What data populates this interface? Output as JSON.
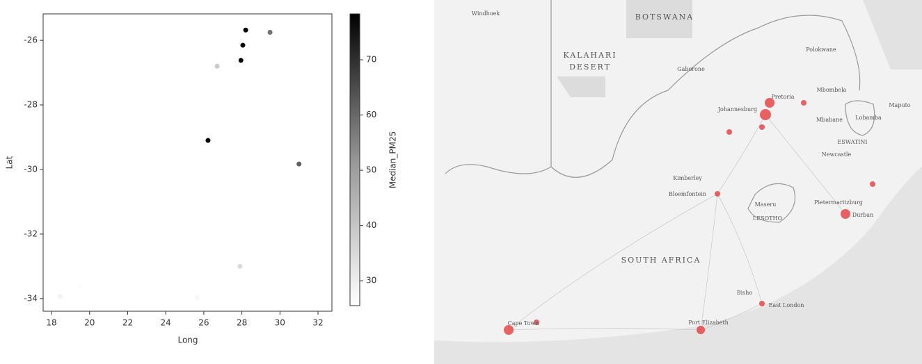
{
  "chart_data": {
    "type": "scatter",
    "x_label": "Long",
    "y_label": "Lat",
    "colorbar_label": "Median_PM25",
    "x": [
      28.2,
      28.05,
      27.95,
      29.48,
      26.7,
      26.22,
      31.0,
      27.9,
      18.44,
      19.5,
      25.64
    ],
    "y": [
      -25.68,
      -26.15,
      -26.62,
      -25.75,
      -26.8,
      -29.1,
      -29.83,
      -33.0,
      -33.93,
      -33.63,
      -33.97
    ],
    "color_values": [
      77,
      77,
      77,
      55,
      36,
      77,
      58,
      33,
      28,
      26,
      27
    ],
    "colormap": "Greys",
    "xlim": [
      17.56,
      32.73
    ],
    "ylim": [
      -34.39,
      -25.18
    ],
    "xticks": [
      18,
      20,
      22,
      24,
      26,
      28,
      30,
      32
    ],
    "yticks": [
      -26,
      -28,
      -30,
      -32,
      -34
    ],
    "clim": [
      25.5,
      78.3
    ],
    "cticks": [
      30,
      40,
      50,
      60,
      70
    ]
  },
  "map": {
    "labels": [
      "Windhoek",
      "BOTSWANA",
      "KALAHARI",
      "DESERT",
      "Gaborone",
      "Polokwane",
      "Pretoria",
      "Johannesburg",
      "Mbombela",
      "Maputo",
      "Lobamba",
      "Mbabane",
      "ESWATINI",
      "Newcastle",
      "Kimberley",
      "Bloemfontein",
      "Maseru",
      "LESOTHO",
      "Pietermaritzburg",
      "Durban",
      "SOUTH AFRICA",
      "Bisho",
      "East London",
      "Cape Town",
      "Port Elizabeth"
    ]
  }
}
